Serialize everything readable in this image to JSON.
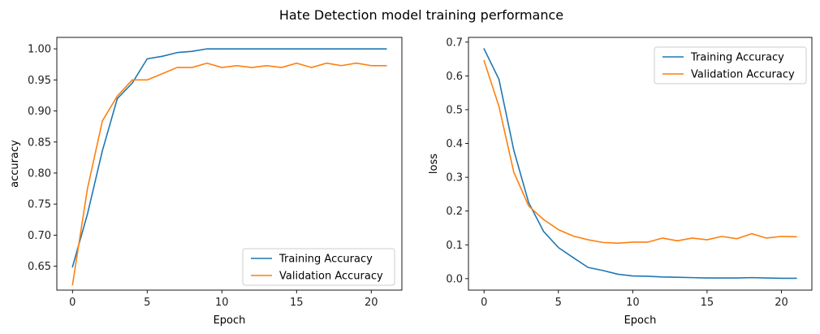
{
  "figure": {
    "suptitle": "Hate Detection model training performance"
  },
  "chart_data": [
    {
      "type": "line",
      "title": "",
      "xlabel": "Epoch",
      "ylabel": "accuracy",
      "xlim": [
        -1.05,
        22.05
      ],
      "ylim": [
        0.6115,
        1.0185
      ],
      "xticks": [
        0,
        5,
        10,
        15,
        20
      ],
      "yticks": [
        0.65,
        0.7,
        0.75,
        0.8,
        0.85,
        0.9,
        0.95,
        1.0
      ],
      "ytick_labels": [
        "0.65",
        "0.70",
        "0.75",
        "0.80",
        "0.85",
        "0.90",
        "0.95",
        "1.00"
      ],
      "grid": false,
      "legend_position": "lower right",
      "x": [
        0,
        1,
        2,
        3,
        4,
        5,
        6,
        7,
        8,
        9,
        10,
        11,
        12,
        13,
        14,
        15,
        16,
        17,
        18,
        19,
        20,
        21
      ],
      "series": [
        {
          "name": "Training Accuracy",
          "color": "#1f77b4",
          "values": [
            0.649,
            0.734,
            0.836,
            0.92,
            0.945,
            0.984,
            0.988,
            0.994,
            0.996,
            1.0,
            1.0,
            1.0,
            1.0,
            1.0,
            1.0,
            1.0,
            1.0,
            1.0,
            1.0,
            1.0,
            1.0,
            1.0
          ]
        },
        {
          "name": "Validation Accuracy",
          "color": "#ff7f0e",
          "values": [
            0.62,
            0.775,
            0.884,
            0.924,
            0.95,
            0.95,
            0.96,
            0.97,
            0.97,
            0.977,
            0.97,
            0.973,
            0.97,
            0.973,
            0.97,
            0.977,
            0.97,
            0.977,
            0.973,
            0.977,
            0.973,
            0.973
          ]
        }
      ]
    },
    {
      "type": "line",
      "title": "",
      "xlabel": "Epoch",
      "ylabel": "loss",
      "xlim": [
        -1.05,
        22.05
      ],
      "ylim": [
        -0.034,
        0.714
      ],
      "xticks": [
        0,
        5,
        10,
        15,
        20
      ],
      "yticks": [
        0.0,
        0.1,
        0.2,
        0.3,
        0.4,
        0.5,
        0.6,
        0.7
      ],
      "ytick_labels": [
        "0.0",
        "0.1",
        "0.2",
        "0.3",
        "0.4",
        "0.5",
        "0.6",
        "0.7"
      ],
      "grid": false,
      "legend_position": "upper right",
      "x": [
        0,
        1,
        2,
        3,
        4,
        5,
        6,
        7,
        8,
        9,
        10,
        11,
        12,
        13,
        14,
        15,
        16,
        17,
        18,
        19,
        20,
        21
      ],
      "series": [
        {
          "name": "Training Accuracy",
          "color": "#1f77b4",
          "values": [
            0.68,
            0.59,
            0.38,
            0.225,
            0.14,
            0.092,
            0.062,
            0.033,
            0.024,
            0.013,
            0.008,
            0.007,
            0.005,
            0.004,
            0.003,
            0.002,
            0.002,
            0.002,
            0.003,
            0.002,
            0.001,
            0.001
          ]
        },
        {
          "name": "Validation Accuracy",
          "color": "#ff7f0e",
          "values": [
            0.645,
            0.51,
            0.315,
            0.215,
            0.175,
            0.145,
            0.126,
            0.115,
            0.107,
            0.105,
            0.108,
            0.108,
            0.12,
            0.112,
            0.12,
            0.115,
            0.125,
            0.118,
            0.133,
            0.12,
            0.125,
            0.124
          ]
        }
      ]
    }
  ]
}
